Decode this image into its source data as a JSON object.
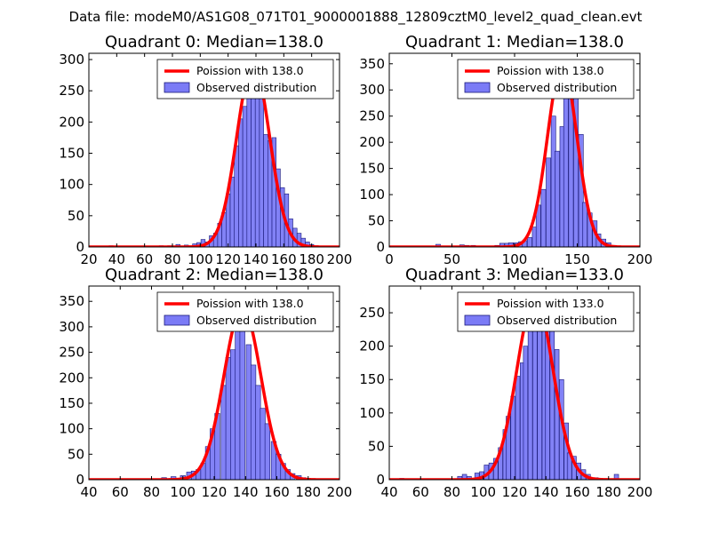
{
  "suptitle": "Data file: modeM0/AS1G08_071T01_9000001888_12809cztM0_level2_quad_clean.evt",
  "colors": {
    "bar_fill": "#7b7bf6",
    "bar_edge": "#1a1a7a",
    "curve": "#ff0000",
    "background": "#ffffff"
  },
  "chart_data": [
    {
      "type": "bar",
      "title": "Quadrant 0: Median=138.0",
      "xlim": [
        20,
        200
      ],
      "ylim": [
        0,
        310
      ],
      "xticks": [
        20,
        40,
        60,
        80,
        100,
        120,
        140,
        160,
        180,
        200
      ],
      "yticks": [
        0,
        50,
        100,
        150,
        200,
        250,
        300
      ],
      "bin_width": 3,
      "bins": [
        [
          36,
          2
        ],
        [
          42,
          1
        ],
        [
          48,
          1
        ],
        [
          54,
          1
        ],
        [
          60,
          1
        ],
        [
          66,
          1
        ],
        [
          72,
          2
        ],
        [
          78,
          2
        ],
        [
          84,
          4
        ],
        [
          90,
          3
        ],
        [
          96,
          5
        ],
        [
          99,
          7
        ],
        [
          102,
          12
        ],
        [
          105,
          8
        ],
        [
          108,
          18
        ],
        [
          111,
          22
        ],
        [
          114,
          38
        ],
        [
          117,
          55
        ],
        [
          120,
          85
        ],
        [
          123,
          112
        ],
        [
          126,
          162
        ],
        [
          129,
          205
        ],
        [
          132,
          225
        ],
        [
          135,
          270
        ],
        [
          138,
          282
        ],
        [
          141,
          245
        ],
        [
          144,
          255
        ],
        [
          147,
          180
        ],
        [
          150,
          170
        ],
        [
          153,
          175
        ],
        [
          156,
          125
        ],
        [
          159,
          95
        ],
        [
          162,
          85
        ],
        [
          165,
          45
        ],
        [
          168,
          30
        ],
        [
          171,
          22
        ],
        [
          174,
          14
        ],
        [
          177,
          8
        ],
        [
          180,
          4
        ],
        [
          183,
          2
        ]
      ],
      "curve": {
        "label": "Poission with 138.0",
        "mean": 138.0,
        "scale": 293
      },
      "legend": {
        "curve_label": "Poission with 138.0",
        "bar_label": "Observed distribution",
        "loc": "upper right"
      }
    },
    {
      "type": "bar",
      "title": "Quadrant 1: Median=138.0",
      "xlim": [
        0,
        200
      ],
      "ylim": [
        0,
        370
      ],
      "xticks": [
        0,
        50,
        100,
        150,
        200
      ],
      "yticks": [
        0,
        50,
        100,
        150,
        200,
        250,
        300,
        350
      ],
      "bin_width": 3.7,
      "bins": [
        [
          4,
          2
        ],
        [
          11,
          2
        ],
        [
          19,
          1
        ],
        [
          26,
          1
        ],
        [
          34,
          1
        ],
        [
          39,
          5
        ],
        [
          48,
          2
        ],
        [
          58,
          4
        ],
        [
          62,
          3
        ],
        [
          67,
          3
        ],
        [
          76,
          2
        ],
        [
          86,
          3
        ],
        [
          90,
          7
        ],
        [
          94,
          7
        ],
        [
          97,
          8
        ],
        [
          101,
          8
        ],
        [
          105,
          10
        ],
        [
          108,
          12
        ],
        [
          112,
          18
        ],
        [
          116,
          38
        ],
        [
          119,
          80
        ],
        [
          123,
          110
        ],
        [
          127,
          170
        ],
        [
          131,
          250
        ],
        [
          134,
          183
        ],
        [
          138,
          230
        ],
        [
          141,
          330
        ],
        [
          145,
          310
        ],
        [
          149,
          285
        ],
        [
          153,
          215
        ],
        [
          156,
          85
        ],
        [
          160,
          65
        ],
        [
          164,
          50
        ],
        [
          167,
          25
        ],
        [
          171,
          15
        ],
        [
          175,
          8
        ],
        [
          179,
          3
        ],
        [
          183,
          2
        ]
      ],
      "curve": {
        "label": "Poission with 138.0",
        "mean": 138.0,
        "scale": 348
      },
      "legend": {
        "curve_label": "Poission with 138.0",
        "bar_label": "Observed distribution",
        "loc": "upper right"
      }
    },
    {
      "type": "bar",
      "title": "Quadrant 2: Median=138.0",
      "xlim": [
        40,
        200
      ],
      "ylim": [
        0,
        380
      ],
      "xticks": [
        40,
        60,
        80,
        100,
        120,
        140,
        160,
        180,
        200
      ],
      "yticks": [
        0,
        50,
        100,
        150,
        200,
        250,
        300,
        350
      ],
      "bin_width": 3.2,
      "bins": [
        [
          88,
          4
        ],
        [
          94,
          6
        ],
        [
          100,
          8
        ],
        [
          104,
          15
        ],
        [
          107,
          17
        ],
        [
          110,
          20
        ],
        [
          113,
          32
        ],
        [
          116,
          65
        ],
        [
          119,
          100
        ],
        [
          122,
          130
        ],
        [
          126,
          185
        ],
        [
          129,
          240
        ],
        [
          132,
          255
        ],
        [
          135,
          310
        ],
        [
          138,
          310
        ],
        [
          142,
          265
        ],
        [
          145,
          225
        ],
        [
          148,
          185
        ],
        [
          151,
          140
        ],
        [
          154,
          110
        ],
        [
          158,
          75
        ],
        [
          161,
          50
        ],
        [
          164,
          32
        ],
        [
          167,
          20
        ],
        [
          170,
          12
        ],
        [
          174,
          8
        ],
        [
          177,
          4
        ],
        [
          180,
          2
        ]
      ],
      "curve": {
        "label": "Poission with 138.0",
        "mean": 138.0,
        "scale": 338
      },
      "legend": {
        "curve_label": "Poission with 138.0",
        "bar_label": "Observed distribution",
        "loc": "upper right"
      }
    },
    {
      "type": "bar",
      "title": "Quadrant 3: Median=133.0",
      "xlim": [
        40,
        200
      ],
      "ylim": [
        0,
        290
      ],
      "xticks": [
        40,
        60,
        80,
        100,
        120,
        140,
        160,
        180,
        200
      ],
      "yticks": [
        0,
        50,
        100,
        150,
        200,
        250
      ],
      "bin_width": 2.8,
      "bins": [
        [
          48,
          2
        ],
        [
          85,
          5
        ],
        [
          88,
          8
        ],
        [
          91,
          5
        ],
        [
          96,
          10
        ],
        [
          99,
          12
        ],
        [
          102,
          22
        ],
        [
          105,
          25
        ],
        [
          108,
          32
        ],
        [
          111,
          48
        ],
        [
          114,
          75
        ],
        [
          116,
          95
        ],
        [
          119,
          125
        ],
        [
          122,
          155
        ],
        [
          125,
          175
        ],
        [
          127,
          200
        ],
        [
          130,
          245
        ],
        [
          133,
          265
        ],
        [
          136,
          235
        ],
        [
          139,
          262
        ],
        [
          141,
          245
        ],
        [
          144,
          225
        ],
        [
          147,
          195
        ],
        [
          150,
          150
        ],
        [
          153,
          85
        ],
        [
          155,
          40
        ],
        [
          158,
          35
        ],
        [
          161,
          25
        ],
        [
          164,
          15
        ],
        [
          167,
          8
        ],
        [
          172,
          3
        ],
        [
          185,
          8
        ]
      ],
      "curve": {
        "label": "Poission with 133.0",
        "mean": 133.0,
        "scale": 272
      },
      "legend": {
        "curve_label": "Poission with 133.0",
        "bar_label": "Observed distribution",
        "loc": "upper right"
      }
    }
  ]
}
